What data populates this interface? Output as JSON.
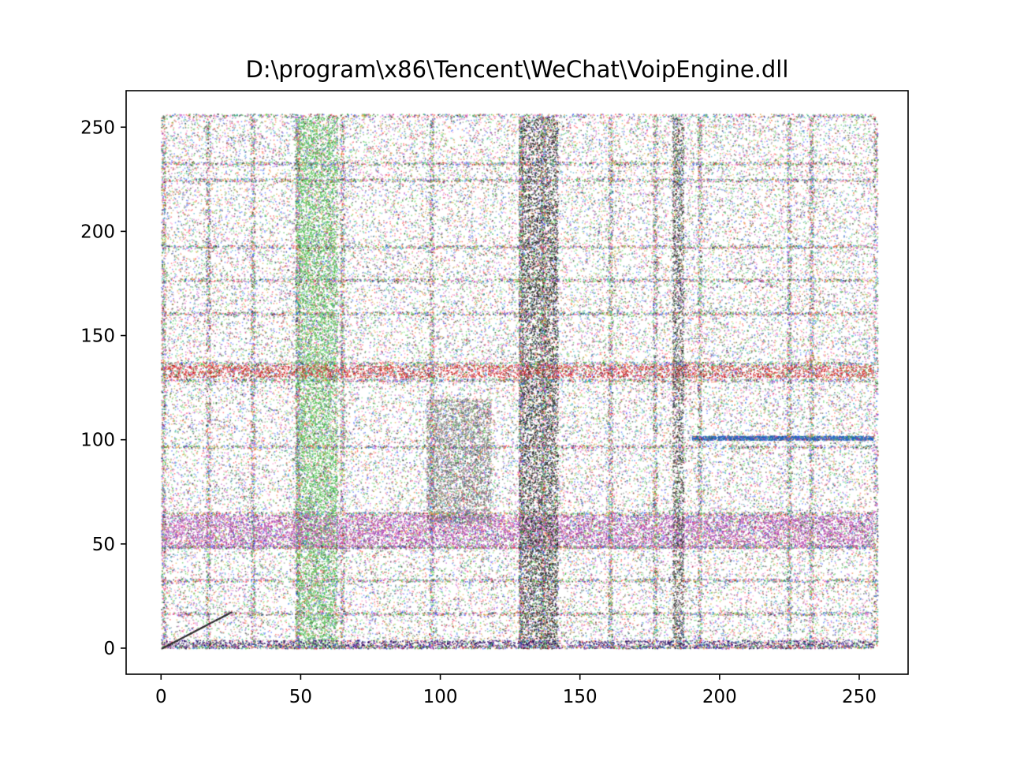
{
  "chart_data": {
    "type": "scatter",
    "title": "D:\\program\\x86\\Tencent\\WeChat\\VoipEngine.dll",
    "xlabel": "",
    "ylabel": "",
    "xlim": [
      -12.5,
      267.5
    ],
    "ylim": [
      -12.5,
      267.5
    ],
    "x_ticks": [
      0,
      50,
      100,
      150,
      200,
      250
    ],
    "y_ticks": [
      0,
      50,
      100,
      150,
      200,
      250
    ],
    "x_tick_labels": [
      "0",
      "50",
      "100",
      "150",
      "200",
      "250"
    ],
    "y_tick_labels": [
      "0",
      "50",
      "100",
      "150",
      "200",
      "250"
    ],
    "grid": false,
    "legend": "none",
    "point_domain": {
      "x": [
        0,
        255
      ],
      "y": [
        0,
        255
      ]
    },
    "background_color": "#ffffff",
    "regions": [
      {
        "label": "green vertical band",
        "x": [
          48,
          63
        ],
        "y": [
          0,
          255
        ],
        "color": "#4cbf4c"
      },
      {
        "label": "magenta horizontal band",
        "x": [
          0,
          255
        ],
        "y": [
          48,
          64
        ],
        "color": "#b040b0"
      },
      {
        "label": "gray cluster",
        "x": [
          95,
          118
        ],
        "y": [
          60,
          120
        ],
        "color": "#707070"
      },
      {
        "label": "dark vertical column",
        "x": [
          128,
          142
        ],
        "y": [
          0,
          255
        ],
        "color": "#202020"
      },
      {
        "label": "red horizontal line",
        "x": [
          0,
          255
        ],
        "y": [
          130,
          136
        ],
        "color": "#d02020"
      },
      {
        "label": "dark vertical line",
        "x": [
          183,
          187
        ],
        "y": [
          0,
          255
        ],
        "color": "#303030"
      },
      {
        "label": "blue horizontal line",
        "x": [
          190,
          255
        ],
        "y": [
          100,
          102
        ],
        "color": "#2060c0"
      },
      {
        "label": "dark bottom band",
        "x": [
          0,
          255
        ],
        "y": [
          0,
          4
        ],
        "color": "#200060"
      }
    ]
  }
}
